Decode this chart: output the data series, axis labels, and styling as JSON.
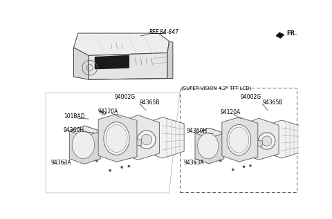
{
  "bg_color": "#ffffff",
  "fr_label": "FR.",
  "ref_label": "REF.84-847",
  "super_vision_label": "(SUPER VISION 4.2\" TFT LCD)",
  "left_label": "94002G",
  "right_label": "94002G",
  "lc": "#444444",
  "gc": "#888888"
}
